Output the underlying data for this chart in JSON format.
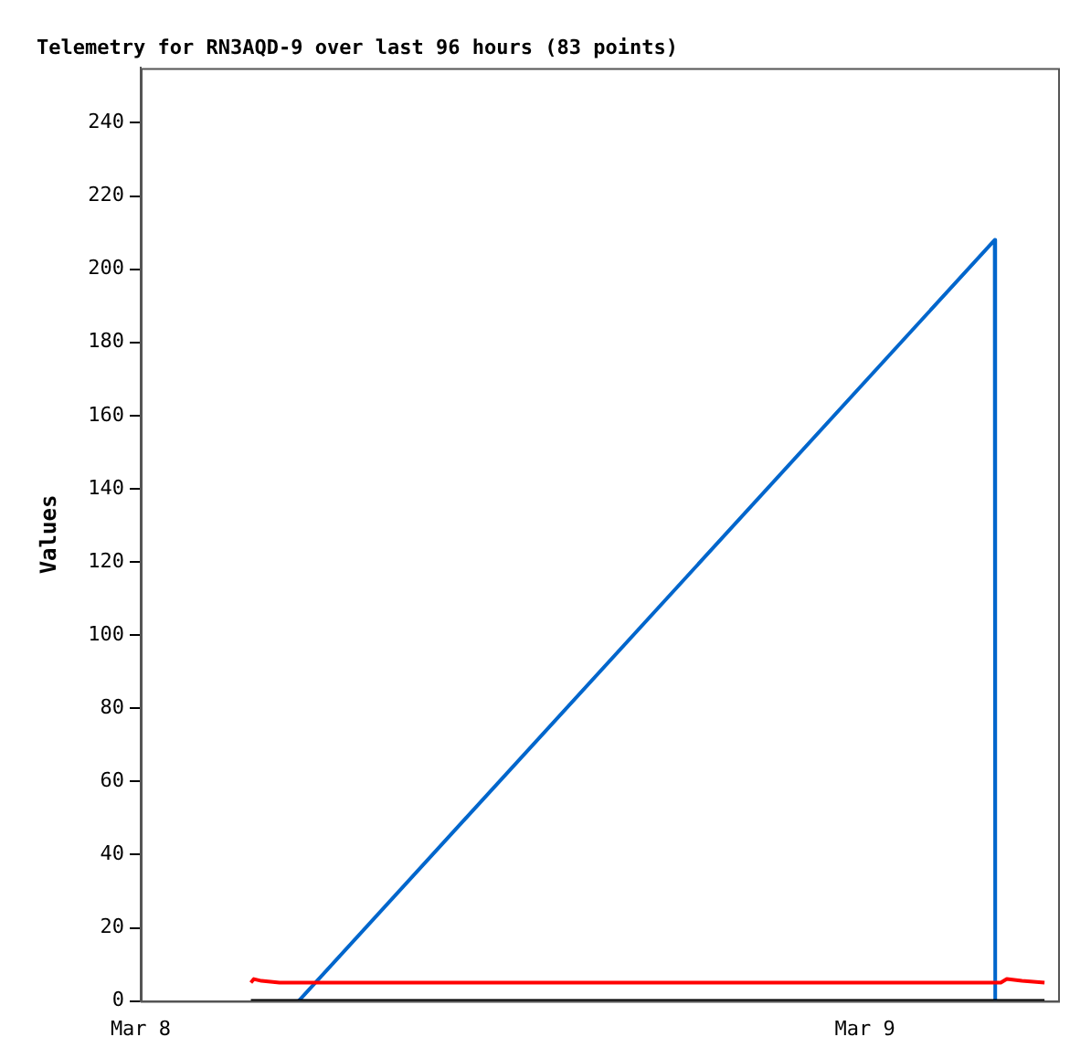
{
  "chart_data": {
    "type": "line",
    "title": "Telemetry for RN3AQD-9 over last 96 hours (83 points)",
    "ylabel": "Values",
    "xlim": [
      "--03-08",
      "--03-09T06:24"
    ],
    "xticks": [
      {
        "value": "--03-08",
        "label": "Mar 8"
      },
      {
        "value": "--03-09",
        "label": "Mar 9"
      }
    ],
    "ylim": [
      0,
      255
    ],
    "yticks": [
      0,
      20,
      40,
      60,
      80,
      100,
      120,
      140,
      160,
      180,
      200,
      220,
      240
    ],
    "grid": false,
    "legend": false,
    "marker": "none",
    "line_style": "solid",
    "series": [
      {
        "color": "#000000",
        "x": [
          "--03-08T03:39",
          "--03-09T05:57"
        ],
        "values": [
          0,
          0
        ]
      },
      {
        "color": "#ff0000",
        "x": [
          "--03-08T03:39",
          "--03-08T03:45",
          "--03-08T04:00",
          "--03-08T04:36",
          "--03-09T04:30",
          "--03-09T04:42",
          "--03-09T05:12",
          "--03-09T05:57"
        ],
        "values": [
          5,
          6,
          5.5,
          5,
          5,
          6,
          5.5,
          5
        ]
      },
      {
        "color": "#0066cc",
        "x": [
          "--03-08T05:14",
          "--03-09T04:18",
          "--03-09T04:19"
        ],
        "values": [
          0,
          208,
          0
        ]
      }
    ]
  }
}
